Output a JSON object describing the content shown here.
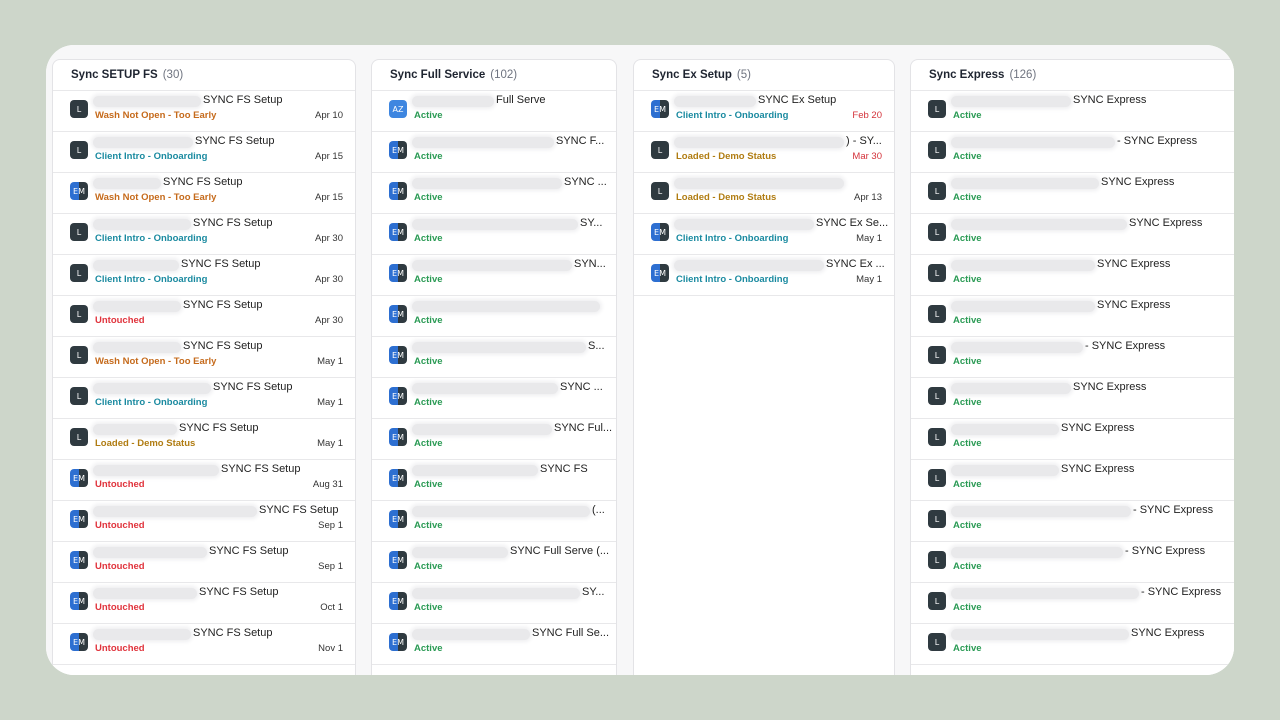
{
  "columns": [
    {
      "title": "Sync SETUP FS",
      "count": "(30)",
      "cards": [
        {
          "avatar": "L",
          "title": "SYNC FS Setup",
          "status": "Wash Not Open - Too Early",
          "date": "Apr 10"
        },
        {
          "avatar": "L",
          "title": "SYNC FS Setup",
          "status": "Client Intro - Onboarding",
          "date": "Apr 15"
        },
        {
          "avatar": "EM",
          "title": "SYNC FS Setup",
          "status": "Wash Not Open - Too Early",
          "date": "Apr 15"
        },
        {
          "avatar": "L",
          "title": "SYNC FS Setup",
          "status": "Client Intro - Onboarding",
          "date": "Apr 30"
        },
        {
          "avatar": "L",
          "title": "SYNC FS Setup",
          "status": "Client Intro - Onboarding",
          "date": "Apr 30"
        },
        {
          "avatar": "L",
          "title": "SYNC FS Setup",
          "status": "Untouched",
          "date": "Apr 30"
        },
        {
          "avatar": "L",
          "title": "SYNC FS Setup",
          "status": "Wash Not Open - Too Early",
          "date": "May 1"
        },
        {
          "avatar": "L",
          "title": "SYNC FS Setup",
          "status": "Client Intro - Onboarding",
          "date": "May 1"
        },
        {
          "avatar": "L",
          "title": "SYNC FS Setup",
          "status": "Loaded - Demo Status",
          "date": "May 1"
        },
        {
          "avatar": "EM",
          "title": "SYNC FS Setup",
          "status": "Untouched",
          "date": "Aug 31"
        },
        {
          "avatar": "EM",
          "title": "SYNC FS Setup",
          "status": "Untouched",
          "date": "Sep 1"
        },
        {
          "avatar": "EM",
          "title": "SYNC FS Setup",
          "status": "Untouched",
          "date": "Sep 1"
        },
        {
          "avatar": "EM",
          "title": "SYNC FS Setup",
          "status": "Untouched",
          "date": "Oct 1"
        },
        {
          "avatar": "EM",
          "title": "SYNC FS Setup",
          "status": "Untouched",
          "date": "Nov 1"
        }
      ]
    },
    {
      "title": "Sync Full Service",
      "count": "(102)",
      "cards": [
        {
          "avatar": "AZ",
          "title": "Full Serve",
          "status": "Active",
          "date": ""
        },
        {
          "avatar": "EM",
          "title": "SYNC F...",
          "status": "Active",
          "date": ""
        },
        {
          "avatar": "EM",
          "title": "SYNC ...",
          "status": "Active",
          "date": ""
        },
        {
          "avatar": "EM",
          "title": "SY...",
          "status": "Active",
          "date": ""
        },
        {
          "avatar": "EM",
          "title": "SYN...",
          "status": "Active",
          "date": ""
        },
        {
          "avatar": "EM",
          "title": "",
          "status": "Active",
          "date": ""
        },
        {
          "avatar": "EM",
          "title": "S...",
          "status": "Active",
          "date": ""
        },
        {
          "avatar": "EM",
          "title": "SYNC ...",
          "status": "Active",
          "date": ""
        },
        {
          "avatar": "EM",
          "title": "SYNC Ful...",
          "status": "Active",
          "date": ""
        },
        {
          "avatar": "EM",
          "title": "SYNC FS",
          "status": "Active",
          "date": ""
        },
        {
          "avatar": "EM",
          "title": "(...",
          "status": "Active",
          "date": ""
        },
        {
          "avatar": "EM",
          "title": "SYNC Full Serve (...",
          "status": "Active",
          "date": ""
        },
        {
          "avatar": "EM",
          "title": "SY...",
          "status": "Active",
          "date": ""
        },
        {
          "avatar": "EM",
          "title": "SYNC Full Se...",
          "status": "Active",
          "date": ""
        }
      ]
    },
    {
      "title": "Sync Ex Setup",
      "count": "(5)",
      "cards": [
        {
          "avatar": "EM",
          "title": "SYNC Ex Setup",
          "status": "Client Intro - Onboarding",
          "date": "Feb 20"
        },
        {
          "avatar": "L",
          "title": ") - SY...",
          "status": "Loaded - Demo Status",
          "date": "Mar 30"
        },
        {
          "avatar": "L",
          "title": "",
          "status": "Loaded - Demo Status",
          "date": "Apr 13"
        },
        {
          "avatar": "EM",
          "title": "SYNC Ex Se...",
          "status": "Client Intro - Onboarding",
          "date": "May 1"
        },
        {
          "avatar": "EM",
          "title": "SYNC Ex ...",
          "status": "Client Intro - Onboarding",
          "date": "May 1"
        }
      ]
    },
    {
      "title": "Sync Express",
      "count": "(126)",
      "cards": [
        {
          "avatar": "L",
          "title": "SYNC Express",
          "status": "Active",
          "date": ""
        },
        {
          "avatar": "L",
          "title": "- SYNC Express",
          "status": "Active",
          "date": ""
        },
        {
          "avatar": "L",
          "title": "SYNC Express",
          "status": "Active",
          "date": ""
        },
        {
          "avatar": "L",
          "title": "SYNC Express",
          "status": "Active",
          "date": ""
        },
        {
          "avatar": "L",
          "title": "SYNC Express",
          "status": "Active",
          "date": ""
        },
        {
          "avatar": "L",
          "title": "SYNC Express",
          "status": "Active",
          "date": ""
        },
        {
          "avatar": "L",
          "title": "- SYNC Express",
          "status": "Active",
          "date": ""
        },
        {
          "avatar": "L",
          "title": "SYNC Express",
          "status": "Active",
          "date": ""
        },
        {
          "avatar": "L",
          "title": "SYNC Express",
          "status": "Active",
          "date": ""
        },
        {
          "avatar": "L",
          "title": "SYNC Express",
          "status": "Active",
          "date": ""
        },
        {
          "avatar": "L",
          "title": "- SYNC Express",
          "status": "Active",
          "date": ""
        },
        {
          "avatar": "L",
          "title": "- SYNC Express",
          "status": "Active",
          "date": ""
        },
        {
          "avatar": "L",
          "title": "- SYNC Express",
          "status": "Active",
          "date": ""
        },
        {
          "avatar": "L",
          "title": "SYNC Express",
          "status": "Active",
          "date": ""
        }
      ]
    }
  ]
}
